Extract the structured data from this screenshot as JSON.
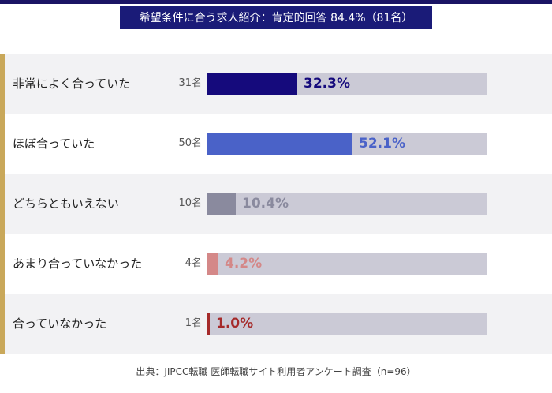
{
  "title": "希望条件に合う求人紹介：肯定的回答 84.4%（81名）",
  "source": "出典：JIPCC転職 医師転職サイト利用者アンケート調査（n=96）",
  "colors": {
    "title_bg": "#1a1b78",
    "accent": "#c9a85a",
    "track": "#cbcad6"
  },
  "chart_data": {
    "type": "bar",
    "orientation": "horizontal",
    "title": "希望条件に合う求人紹介：肯定的回答 84.4%（81名）",
    "categories": [
      "非常によく合っていた",
      "ほぼ合っていた",
      "どちらともいえない",
      "あまり合っていなかった",
      "合っていなかった"
    ],
    "counts": [
      "31名",
      "50名",
      "10名",
      "4名",
      "1名"
    ],
    "values": [
      32.3,
      52.1,
      10.4,
      4.2,
      1.0
    ],
    "value_labels": [
      "32.3%",
      "52.1%",
      "10.4%",
      "4.2%",
      "1.0%"
    ],
    "colors": [
      "#150a7c",
      "#4a62c8",
      "#8a8a9e",
      "#d48888",
      "#a52a2a"
    ],
    "xlim": [
      0,
      100
    ],
    "unit": "%",
    "grid": false
  }
}
